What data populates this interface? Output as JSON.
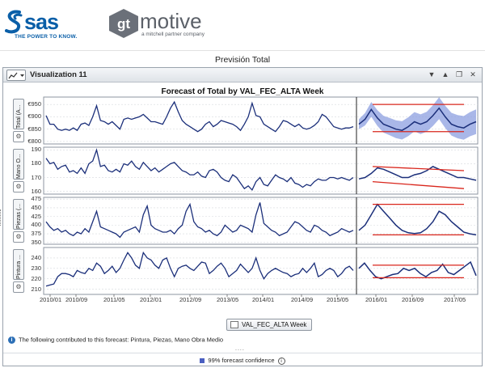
{
  "brand": {
    "sas_word": "sas",
    "sas_tagline": "THE POWER TO KNOW.",
    "gt_letters": "gt",
    "gt_word": "motive",
    "gt_sub": "a mitchell partner company"
  },
  "page": {
    "title": "Previsión Total"
  },
  "visualization": {
    "title": "Visualization 11",
    "chart_title": "Forecast of Total by VAL_FEC_ALTA Week",
    "x_axis_button": "VAL_FEC_ALTA Week",
    "contributors_text": "The following contributed to this forecast: Pintura, Piezas, Mano Obra Medio",
    "legend_label": "99% forecast confidence",
    "divider_dots": "....",
    "window_buttons": [
      "▼",
      "▲",
      "❐",
      "✕"
    ]
  },
  "colors": {
    "series": "#1b2f7a",
    "band": "#8c9fe0",
    "trend": "#d9261c",
    "grid": "#d6d9de"
  },
  "chart_data": {
    "type": "line",
    "x_tick_labels": [
      "2010/01",
      "2010/09",
      "2011/05",
      "2012/01",
      "2012/09",
      "2013/05",
      "2014/01",
      "2014/09",
      "2015/05",
      "2016/01",
      "2016/09",
      "2017/05"
    ],
    "forecast_start": "2015/07",
    "panels": [
      {
        "name": "Total (A...",
        "yticks": [
          "€950",
          "€900",
          "€850",
          "€800"
        ],
        "ylim": [
          790,
          980
        ],
        "values": [
          905,
          870,
          870,
          850,
          845,
          850,
          845,
          855,
          845,
          870,
          875,
          865,
          900,
          945,
          885,
          880,
          870,
          880,
          865,
          850,
          890,
          895,
          890,
          895,
          900,
          910,
          895,
          880,
          880,
          875,
          870,
          900,
          935,
          960,
          920,
          885,
          870,
          860,
          850,
          840,
          850,
          870,
          880,
          860,
          870,
          885,
          880,
          875,
          870,
          860,
          845,
          870,
          900,
          955,
          905,
          900,
          870,
          860,
          850,
          840,
          860,
          885,
          880,
          870,
          860,
          870,
          855,
          850,
          855,
          865,
          880,
          910,
          900,
          880,
          860,
          855,
          850,
          855,
          855,
          860
        ],
        "forecast": [
          870,
          890,
          930,
          895,
          870,
          860,
          850,
          845,
          860,
          880,
          870,
          880,
          905,
          935,
          900,
          870,
          860,
          855,
          870,
          880
        ],
        "band_halfwidth": [
          20,
          25,
          30,
          32,
          34,
          35,
          36,
          37,
          38,
          39,
          40,
          40,
          42,
          44,
          45,
          46,
          47,
          48,
          49,
          50
        ],
        "trend_lines": [
          {
            "from": 950,
            "to": 950
          },
          {
            "from": 840,
            "to": 840
          }
        ]
      },
      {
        "name": "Mano O...",
        "yticks": [
          "190",
          "180",
          "170",
          "160"
        ],
        "ylim": [
          158,
          192
        ],
        "values": [
          184,
          180,
          181,
          176,
          178,
          179,
          174,
          175,
          173,
          177,
          173,
          180,
          182,
          190,
          178,
          179,
          175,
          174,
          176,
          174,
          180,
          179,
          182,
          178,
          176,
          181,
          178,
          175,
          177,
          174,
          176,
          178,
          180,
          181,
          178,
          175,
          174,
          172,
          172,
          174,
          171,
          170,
          175,
          176,
          174,
          170,
          168,
          167,
          172,
          170,
          166,
          162,
          164,
          161,
          167,
          170,
          165,
          164,
          168,
          172,
          170,
          169,
          167,
          170,
          166,
          165,
          163,
          165,
          164,
          167,
          169,
          168,
          168,
          170,
          170,
          169,
          170,
          169,
          168,
          170
        ],
        "forecast": [
          169,
          170,
          173,
          177,
          176,
          174,
          172,
          170,
          170,
          172,
          173,
          175,
          178,
          176,
          174,
          172,
          170,
          170,
          169,
          168
        ],
        "trend_lines": [
          {
            "from": 178,
            "to": 175
          },
          {
            "from": 167,
            "to": 162
          }
        ]
      },
      {
        "name": "Piezas (...",
        "yticks": [
          "475",
          "450",
          "425",
          "400",
          "375",
          "350"
        ],
        "ylim": [
          345,
          480
        ],
        "values": [
          410,
          395,
          385,
          390,
          380,
          385,
          375,
          370,
          380,
          375,
          390,
          380,
          410,
          440,
          395,
          390,
          385,
          380,
          375,
          365,
          380,
          385,
          390,
          395,
          380,
          430,
          455,
          400,
          390,
          385,
          380,
          380,
          385,
          375,
          390,
          400,
          440,
          460,
          410,
          395,
          390,
          380,
          385,
          375,
          370,
          380,
          400,
          390,
          380,
          385,
          400,
          395,
          390,
          380,
          430,
          465,
          405,
          395,
          385,
          380,
          370,
          375,
          380,
          395,
          410,
          405,
          395,
          385,
          380,
          400,
          395,
          385,
          380,
          370,
          375,
          380,
          390,
          385,
          380,
          385
        ],
        "forecast": [
          385,
          400,
          430,
          460,
          440,
          420,
          400,
          385,
          378,
          376,
          378,
          390,
          410,
          440,
          430,
          410,
          395,
          380,
          375,
          372
        ],
        "trend_lines": [
          {
            "from": 460,
            "to": 460
          },
          {
            "from": 372,
            "to": 372
          }
        ]
      },
      {
        "name": "Pintura ...",
        "yticks": [
          "240",
          "230",
          "220",
          "210"
        ],
        "ylim": [
          205,
          250
        ],
        "values": [
          213,
          214,
          215,
          222,
          225,
          225,
          224,
          222,
          228,
          226,
          225,
          230,
          228,
          235,
          232,
          225,
          228,
          232,
          226,
          230,
          238,
          245,
          240,
          233,
          230,
          245,
          240,
          238,
          233,
          230,
          238,
          240,
          230,
          222,
          230,
          232,
          233,
          230,
          228,
          232,
          236,
          235,
          225,
          228,
          232,
          235,
          230,
          222,
          225,
          228,
          234,
          230,
          226,
          230,
          240,
          228,
          220,
          225,
          228,
          230,
          228,
          226,
          225,
          222,
          224,
          225,
          230,
          226,
          230,
          235,
          222,
          224,
          228,
          230,
          228,
          222,
          225,
          230,
          232,
          228
        ],
        "forecast": [
          230,
          235,
          228,
          222,
          220,
          222,
          224,
          225,
          230,
          228,
          230,
          225,
          222,
          226,
          228,
          234,
          226,
          224,
          228,
          232,
          236,
          223
        ],
        "trend_lines": [
          {
            "from": 233,
            "to": 233
          },
          {
            "from": 221,
            "to": 221
          }
        ]
      }
    ],
    "legend": [
      "99% forecast confidence"
    ]
  }
}
